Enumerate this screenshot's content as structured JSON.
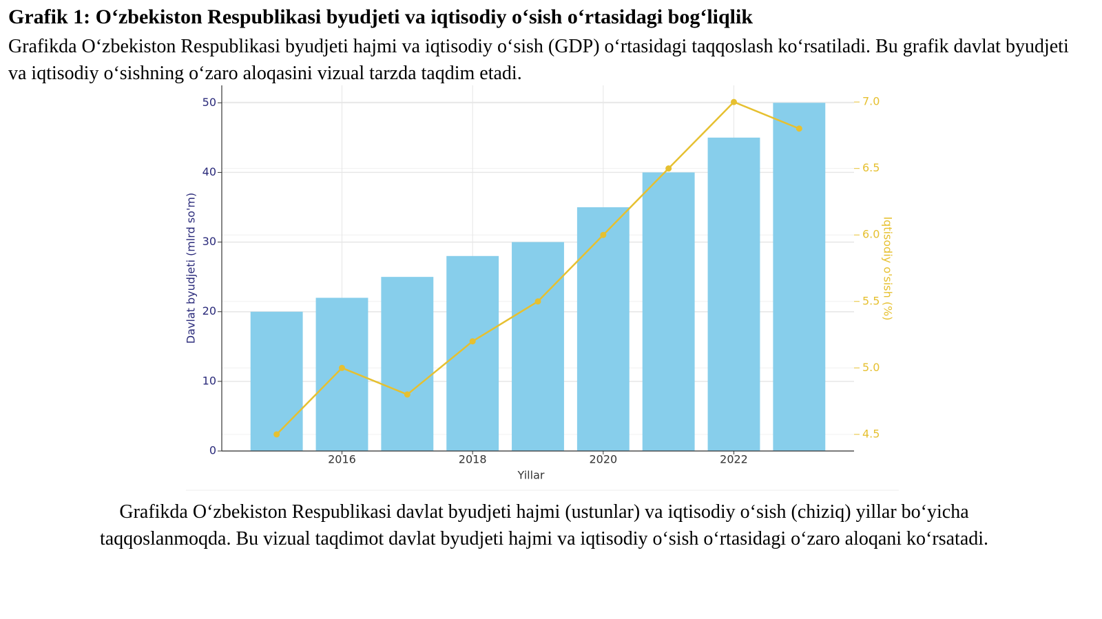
{
  "header": {
    "title": "Grafik 1: O‘zbekiston Respublikasi byudjeti va iqtisodiy o‘sish o‘rtasidagi bog‘liqlik",
    "description": "Grafikda O‘zbekiston Respublikasi byudjeti hajmi va iqtisodiy o‘sish (GDP) o‘rtasidagi taqqoslash ko‘rsatiladi. Bu grafik davlat byudjeti va iqtisodiy o‘sishning o‘zaro aloqasini vizual tarzda taqdim etadi."
  },
  "chart_data": {
    "type": "bar",
    "x": [
      2015,
      2016,
      2017,
      2018,
      2019,
      2020,
      2021,
      2022,
      2023
    ],
    "series": [
      {
        "type": "bar",
        "color": "#87ceeb",
        "values": [
          20,
          22,
          25,
          28,
          30,
          35,
          40,
          45,
          50
        ]
      },
      {
        "type": "line",
        "color": "#e6c030",
        "axis": "y2",
        "values": [
          4.5,
          5.0,
          4.8,
          5.2,
          5.5,
          6.0,
          6.5,
          7.0,
          6.8
        ]
      }
    ],
    "x_label": "Yillar",
    "y_label": "Davlat byudjeti (mlrd so'm)",
    "y2_label": "Iqtisodiy o'sish (%)",
    "xlim": [
      2014.16,
      2023.84
    ],
    "xticks": [
      2016,
      2018,
      2020,
      2022
    ],
    "ylim": [
      0,
      52.5
    ],
    "yticks": [
      0,
      10,
      20,
      30,
      40,
      50
    ],
    "y2lim": [
      4.375,
      7.125
    ],
    "y2ticks": [
      4.5,
      5.0,
      5.5,
      6.0,
      6.5,
      7.0
    ],
    "grid": true
  },
  "caption": "Grafikda O‘zbekiston Respublikasi davlat byudjeti hajmi (ustunlar) va iqtisodiy o‘sish (chiziq) yillar bo‘yicha taqqoslanmoqda. Bu vizual taqdimot davlat byudjeti hajmi va iqtisodiy o‘sish o‘rtasidagi o‘zaro aloqani ko‘rsatadi."
}
